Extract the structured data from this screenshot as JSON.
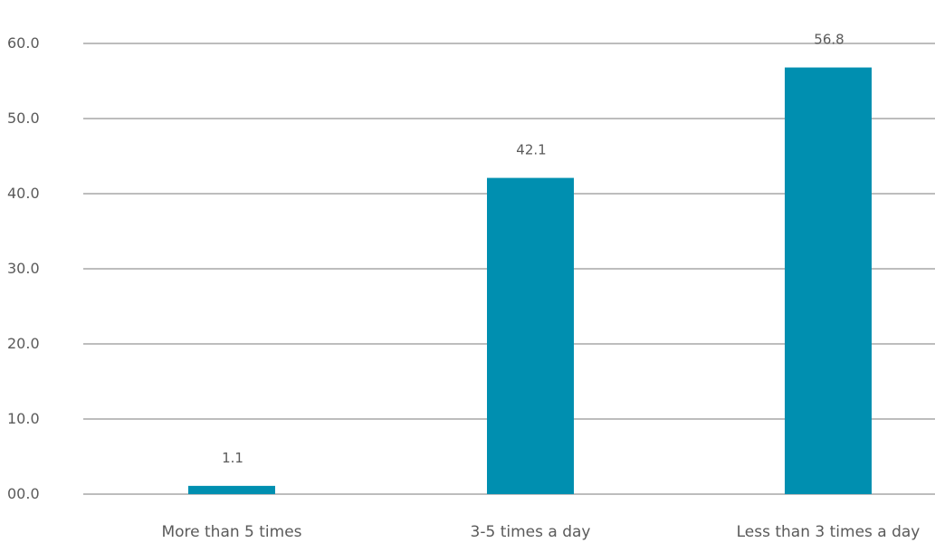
{
  "chart_data": {
    "type": "bar",
    "categories": [
      "More than 5 times",
      "3-5 times a day",
      "Less than 3 times a day"
    ],
    "values": [
      1.1,
      42.1,
      56.8
    ],
    "value_labels": [
      "1.1",
      "42.1",
      "56.8"
    ],
    "y_ticks": [
      0,
      10,
      20,
      30,
      40,
      50,
      60
    ],
    "y_tick_labels": [
      "00.0",
      "10.0",
      "20.0",
      "30.0",
      "40.0",
      "50.0",
      "60.0"
    ],
    "ylim": [
      0,
      60
    ],
    "grid": true,
    "legend": "none",
    "title": "",
    "xlabel": "",
    "ylabel": ""
  },
  "colors": {
    "bar": "#008fb0",
    "grid": "#bdbdbd",
    "text": "#5a5a5a"
  }
}
